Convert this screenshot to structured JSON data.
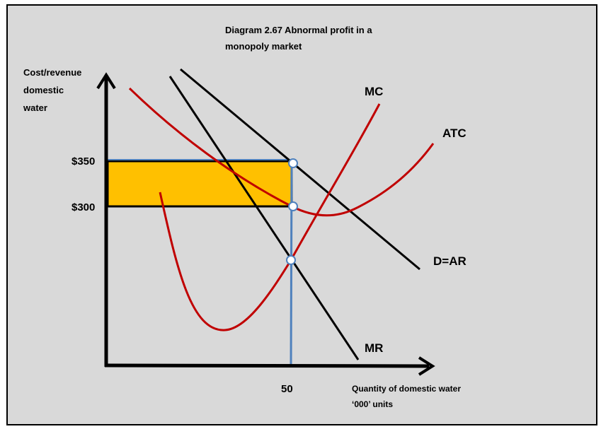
{
  "title": {
    "line1": "Diagram 2.67 Abnormal profit in a",
    "line2": "monopoly market"
  },
  "y_axis": {
    "label_lines": [
      "Cost/revenue",
      "domestic",
      "water"
    ],
    "ticks": [
      "$350",
      "$300"
    ]
  },
  "x_axis": {
    "label_lines": [
      "Quantity of domestic water",
      "‘000’ units"
    ],
    "ticks": [
      "50"
    ]
  },
  "curves": {
    "mc": "MC",
    "atc": "ATC",
    "demand": "D=AR",
    "mr": "MR"
  },
  "colors": {
    "background": "#d9d9d9",
    "cost_curves": "#c00000",
    "revenue_curves": "#000000",
    "profit_area": "#ffc000",
    "guide_lines": "#4f81bd"
  }
}
